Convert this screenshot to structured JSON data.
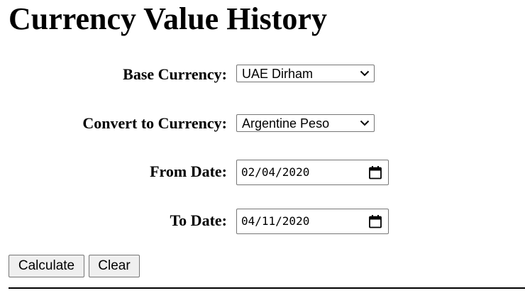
{
  "page": {
    "title": "Currency Value History"
  },
  "form": {
    "base_currency": {
      "label": "Base Currency:",
      "selected": "UAE Dirham",
      "icon": "chevron-down-icon"
    },
    "convert_currency": {
      "label": "Convert to Currency:",
      "selected": "Argentine Peso",
      "icon": "chevron-down-icon"
    },
    "from_date": {
      "label": "From Date:",
      "value": "02/04/2020",
      "icon": "calendar-icon"
    },
    "to_date": {
      "label": "To Date:",
      "value": "04/11/2020",
      "icon": "calendar-icon"
    }
  },
  "buttons": {
    "calculate_label": "Calculate",
    "clear_label": "Clear"
  },
  "colors": {
    "text": "#000000",
    "control_border": "#767676",
    "button_bg": "#efefef",
    "page_bg": "#ffffff"
  }
}
